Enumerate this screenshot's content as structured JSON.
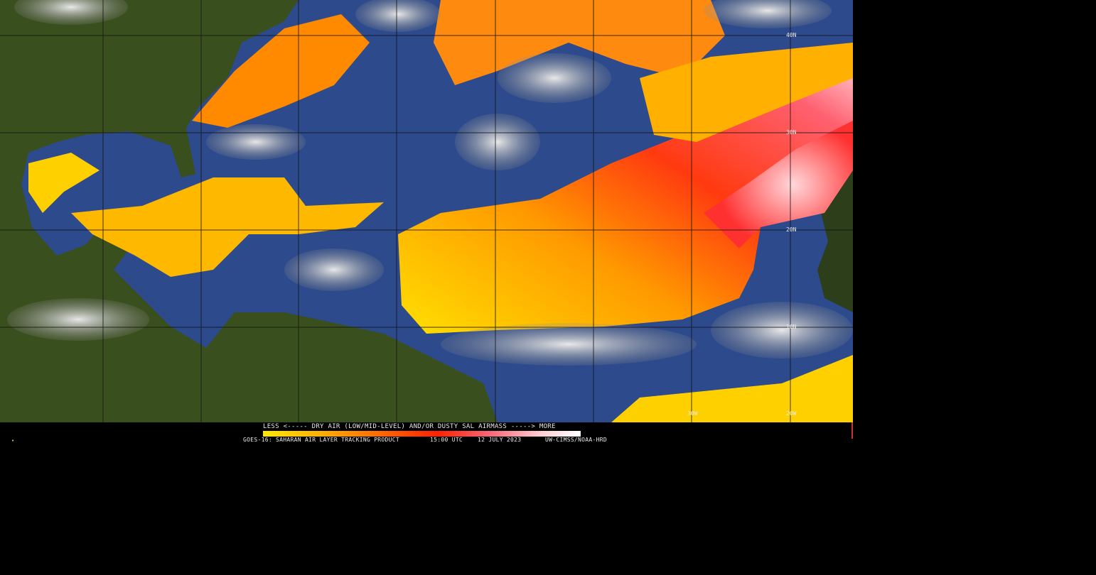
{
  "map": {
    "latitude_labels": [
      "40N",
      "30N",
      "20N",
      "10N"
    ],
    "longitude_labels": [
      "30W",
      "20W"
    ],
    "colors": {
      "ocean": "#2c4a8c",
      "land": "#3a4f1e",
      "cloud": "#b8b8b8",
      "sal_low": "#ffe000",
      "sal_mid": "#ff7a00",
      "sal_high": "#ff2020",
      "sal_max": "#ffc8d0"
    }
  },
  "legend": {
    "scale_label": "LESS <----- DRY AIR (LOW/MID-LEVEL) AND/OR DUSTY SAL AIRMASS -----> MORE",
    "product": "GOES-16: SAHARAN AIR LAYER TRACKING PRODUCT",
    "time": "15:00 UTC",
    "date": "12 JULY 2023",
    "credit": "UW-CIMSS/NOAA-HRD"
  }
}
